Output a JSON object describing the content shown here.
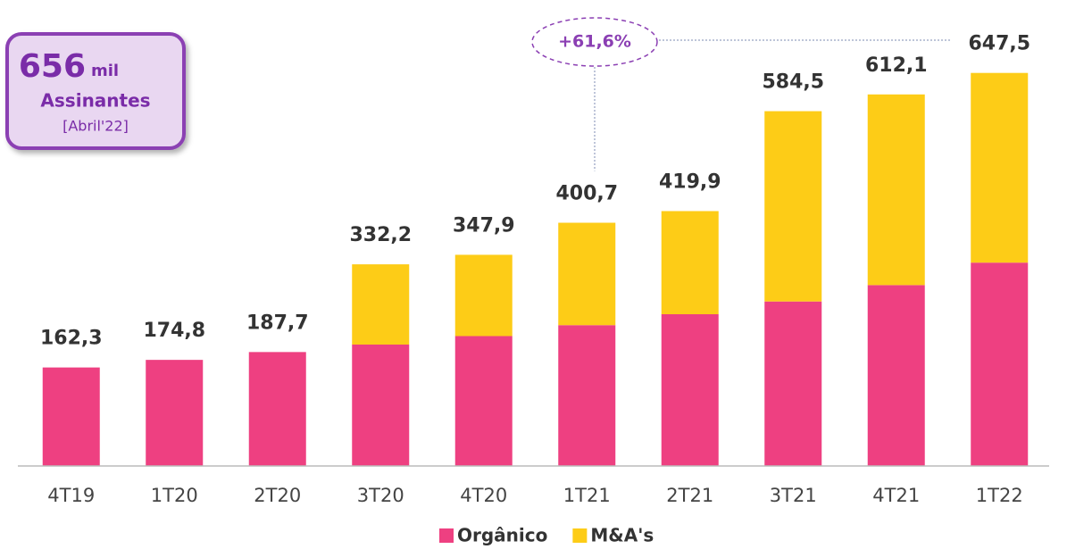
{
  "chart_data": {
    "type": "stacked_bar",
    "categories": [
      "4T19",
      "1T20",
      "2T20",
      "3T20",
      "4T20",
      "1T21",
      "2T21",
      "3T21",
      "4T21",
      "1T22"
    ],
    "series": [
      {
        "name": "Orgânico",
        "color": "#ee4081",
        "values": [
          162.3,
          174.8,
          187.7,
          200,
          214,
          232,
          250,
          271,
          298,
          335
        ]
      },
      {
        "name": "M&A's",
        "color": "#fdcc17",
        "values": [
          0,
          0,
          0,
          132.2,
          133.9,
          168.7,
          169.9,
          313.5,
          314.1,
          312.5
        ]
      }
    ],
    "totals": [
      162.3,
      174.8,
      187.7,
      332.2,
      347.9,
      400.7,
      419.9,
      584.5,
      612.1,
      647.5
    ],
    "total_labels": [
      "162,3",
      "174,8",
      "187,7",
      "332,2",
      "347,9",
      "400,7",
      "419,9",
      "584,5",
      "612,1",
      "647,5"
    ],
    "ylim": [
      0,
      700
    ],
    "legend": "bottom",
    "annotation": {
      "text": "+61,6%",
      "from": 5,
      "to": 9
    },
    "callout": {
      "number": "656",
      "unit": "mil",
      "label": "Assinantes",
      "note": "[Abril'22]"
    }
  }
}
